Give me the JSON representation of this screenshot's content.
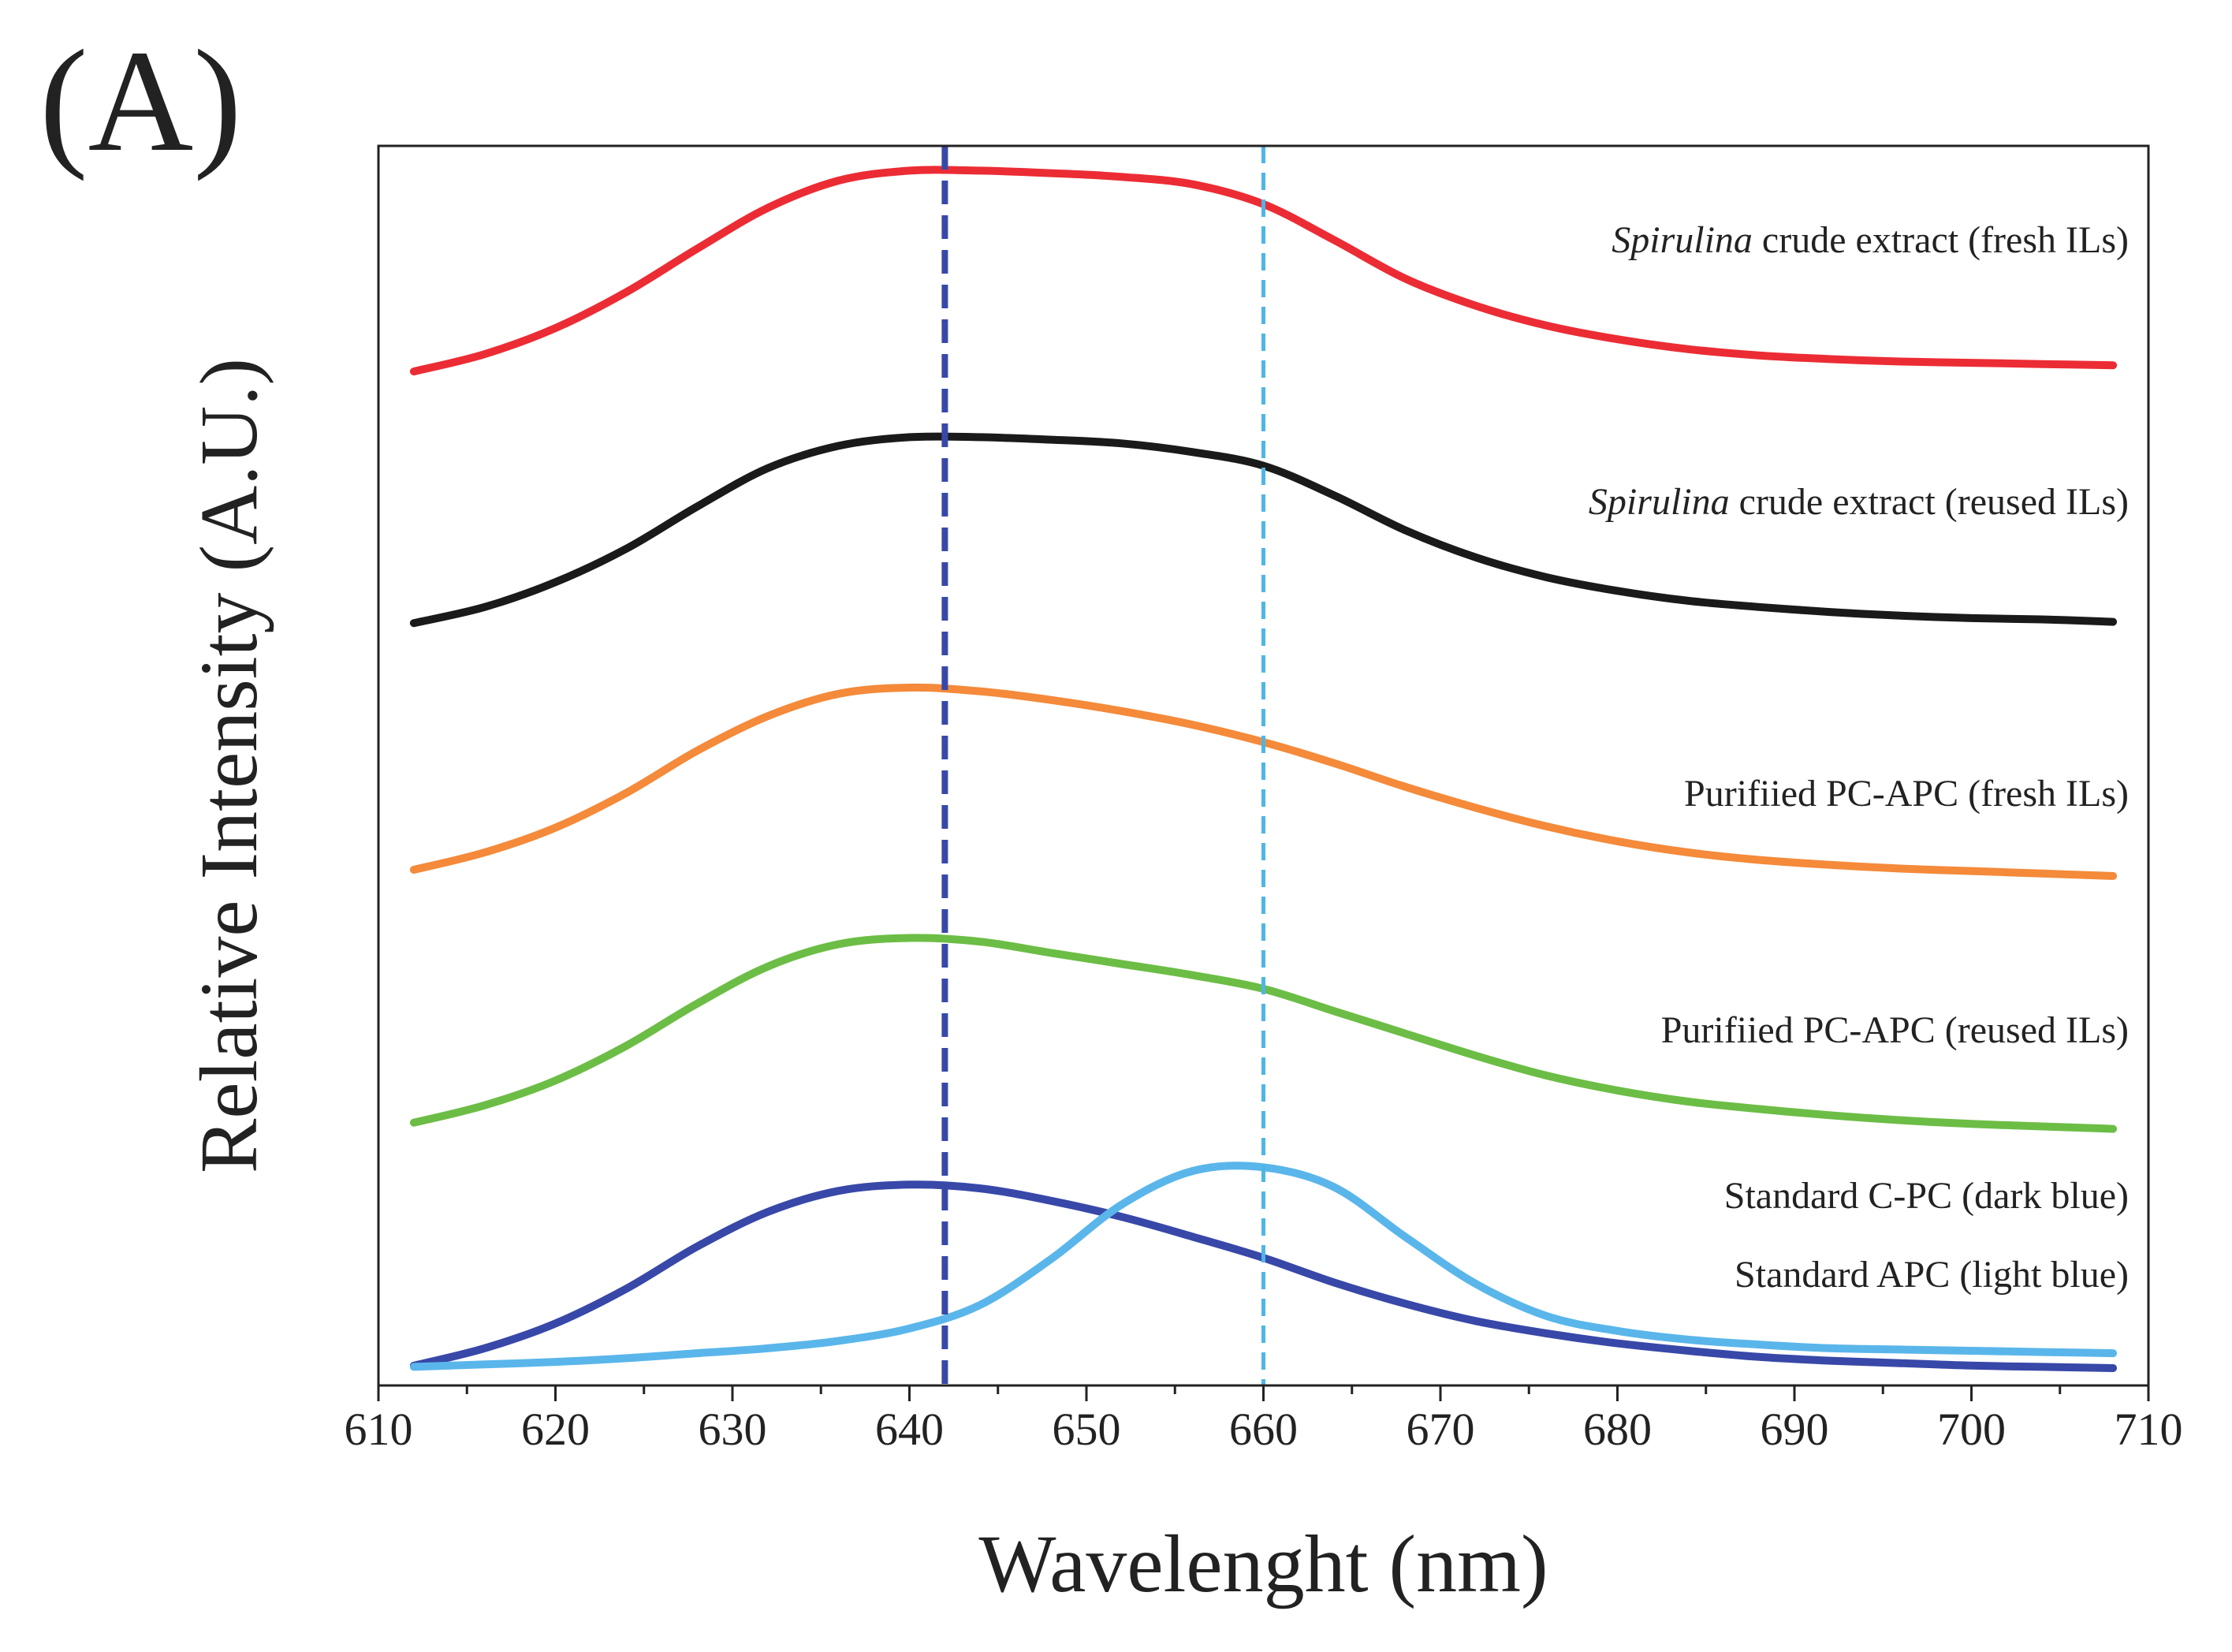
{
  "panel_label": "(A)",
  "chart_data": {
    "type": "line",
    "title": "",
    "xlabel": "Wavelenght (nm)",
    "ylabel": "Relative Intensity (A.U.)",
    "xlim": [
      610,
      710
    ],
    "ylim": [
      0,
      100
    ],
    "xticks": [
      610,
      620,
      630,
      640,
      650,
      660,
      670,
      680,
      690,
      700,
      710
    ],
    "yticks_shown": false,
    "reference_lines": [
      {
        "name": "dark-blue-reference-line",
        "x": 642,
        "color": "#3848a8",
        "style": "dashed"
      },
      {
        "name": "light-blue-reference-line",
        "x": 660,
        "color": "#4db6e6",
        "style": "dashed"
      }
    ],
    "series": [
      {
        "name": "Spirulina crude extract (fresh ILs)",
        "label_italic": "Spirulina",
        "label_rest": " crude extract (fresh ILs)",
        "color": "#ec2c34",
        "x": [
          612,
          616,
          620,
          624,
          628,
          632,
          636,
          640,
          644,
          648,
          652,
          656,
          660,
          664,
          668,
          672,
          676,
          680,
          684,
          688,
          692,
          696,
          700,
          704,
          708
        ],
        "y": [
          81.8,
          83.2,
          85.3,
          88.2,
          91.7,
          95.0,
          97.2,
          98.0,
          98.0,
          97.8,
          97.5,
          96.9,
          95.3,
          92.4,
          89.3,
          87.1,
          85.5,
          84.4,
          83.6,
          83.1,
          82.8,
          82.6,
          82.5,
          82.4,
          82.3
        ]
      },
      {
        "name": "Spirulina crude extract (reused ILs)",
        "label_italic": "Spirulina",
        "label_rest": " crude extract (reused ILs)",
        "color": "#1a1a1a",
        "x": [
          612,
          616,
          620,
          624,
          628,
          632,
          636,
          640,
          644,
          648,
          652,
          656,
          660,
          664,
          668,
          672,
          676,
          680,
          684,
          688,
          692,
          696,
          700,
          704,
          708
        ],
        "y": [
          61.5,
          62.8,
          64.8,
          67.5,
          70.9,
          74.0,
          75.8,
          76.5,
          76.5,
          76.3,
          76.0,
          75.3,
          74.2,
          71.8,
          69.0,
          66.8,
          65.2,
          64.1,
          63.3,
          62.8,
          62.4,
          62.1,
          61.9,
          61.8,
          61.6
        ]
      },
      {
        "name": "Purifiied PC-APC (fresh ILs)",
        "label_text": "Purifiied PC-APC (fresh ILs)",
        "color": "#f48a3a",
        "x": [
          612,
          616,
          620,
          624,
          628,
          632,
          636,
          640,
          644,
          648,
          652,
          656,
          660,
          664,
          668,
          672,
          676,
          680,
          684,
          688,
          692,
          696,
          700,
          704,
          708
        ],
        "y": [
          41.6,
          43.0,
          45.0,
          47.8,
          51.2,
          54.0,
          55.8,
          56.3,
          56.0,
          55.3,
          54.4,
          53.3,
          51.9,
          50.2,
          48.3,
          46.6,
          45.1,
          43.9,
          43.0,
          42.4,
          42.0,
          41.7,
          41.5,
          41.3,
          41.1
        ]
      },
      {
        "name": "Purifiied PC-APC (reused ILs)",
        "label_text": "Purifiied PC-APC (reused ILs)",
        "color": "#6cbd45",
        "x": [
          612,
          616,
          620,
          624,
          628,
          632,
          636,
          640,
          644,
          648,
          652,
          656,
          660,
          664,
          668,
          672,
          676,
          680,
          684,
          688,
          692,
          696,
          700,
          704,
          708
        ],
        "y": [
          21.2,
          22.6,
          24.6,
          27.4,
          30.8,
          33.8,
          35.6,
          36.1,
          35.8,
          34.9,
          34.0,
          33.1,
          32.0,
          30.2,
          28.4,
          26.6,
          25.0,
          23.8,
          22.9,
          22.3,
          21.8,
          21.4,
          21.1,
          20.9,
          20.7
        ]
      },
      {
        "name": "Standard C-PC (dark blue)",
        "label_text": "Standard C-PC (dark blue)",
        "color": "#3848a8",
        "x": [
          612,
          616,
          620,
          624,
          628,
          632,
          636,
          640,
          644,
          648,
          652,
          656,
          660,
          664,
          668,
          672,
          676,
          680,
          684,
          688,
          692,
          696,
          700,
          704,
          708
        ],
        "y": [
          1.6,
          3.0,
          5.0,
          7.8,
          11.2,
          14.0,
          15.7,
          16.2,
          15.9,
          14.9,
          13.6,
          12.0,
          10.3,
          8.3,
          6.6,
          5.2,
          4.2,
          3.4,
          2.8,
          2.3,
          2.0,
          1.8,
          1.6,
          1.5,
          1.4
        ]
      },
      {
        "name": "Standard APC (light blue)",
        "label_text": "Standard APC (light blue)",
        "color": "#5ab6ea",
        "x": [
          612,
          616,
          620,
          624,
          628,
          632,
          636,
          640,
          644,
          648,
          652,
          656,
          660,
          664,
          668,
          672,
          676,
          680,
          684,
          688,
          692,
          696,
          700,
          704,
          708
        ],
        "y": [
          1.5,
          1.7,
          1.9,
          2.2,
          2.6,
          3.0,
          3.6,
          4.6,
          6.5,
          10.2,
          14.6,
          17.3,
          17.6,
          16.0,
          12.0,
          8.2,
          5.6,
          4.4,
          3.7,
          3.3,
          3.0,
          2.9,
          2.8,
          2.7,
          2.6
        ]
      }
    ]
  }
}
